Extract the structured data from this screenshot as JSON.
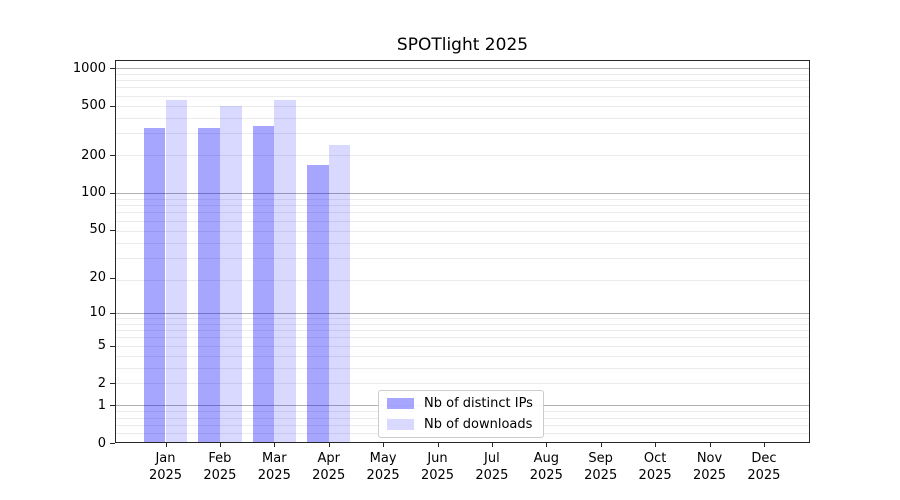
{
  "chart_data": {
    "type": "bar",
    "title": "SPOTlight 2025",
    "categories": [
      {
        "month": "Jan",
        "year": "2025"
      },
      {
        "month": "Feb",
        "year": "2025"
      },
      {
        "month": "Mar",
        "year": "2025"
      },
      {
        "month": "Apr",
        "year": "2025"
      },
      {
        "month": "May",
        "year": "2025"
      },
      {
        "month": "Jun",
        "year": "2025"
      },
      {
        "month": "Jul",
        "year": "2025"
      },
      {
        "month": "Aug",
        "year": "2025"
      },
      {
        "month": "Sep",
        "year": "2025"
      },
      {
        "month": "Oct",
        "year": "2025"
      },
      {
        "month": "Nov",
        "year": "2025"
      },
      {
        "month": "Dec",
        "year": "2025"
      }
    ],
    "series": [
      {
        "name": "Nb of distinct IPs",
        "color": "rgba(0,0,255,0.35)",
        "values": [
          332,
          332,
          345,
          167,
          null,
          null,
          null,
          null,
          null,
          null,
          null,
          null
        ]
      },
      {
        "name": "Nb of downloads",
        "color": "rgba(0,0,255,0.15)",
        "values": [
          557,
          497,
          557,
          240,
          null,
          null,
          null,
          null,
          null,
          null,
          null,
          null
        ]
      }
    ],
    "y_axis": {
      "scale": "log1p-base10",
      "ticks": [
        "0",
        "1",
        "2",
        "5",
        "10",
        "20",
        "50",
        "100",
        "200",
        "500",
        "1000"
      ],
      "major_grid_values": [
        1,
        10,
        100,
        1000
      ],
      "ylim": [
        0,
        1150
      ],
      "grid": true
    },
    "x_axis": {
      "ticks_are_months": true,
      "year": "2025"
    },
    "legend_position": "lower center"
  },
  "colors": {
    "bar_distinct_ips": "rgba(0,0,255,0.35)",
    "bar_downloads": "rgba(0,0,255,0.15)",
    "major_grid": "#b0b0b0",
    "minor_grid": "#ebebeb",
    "spine": "#262626",
    "background": "#ffffff",
    "text": "#000000"
  }
}
